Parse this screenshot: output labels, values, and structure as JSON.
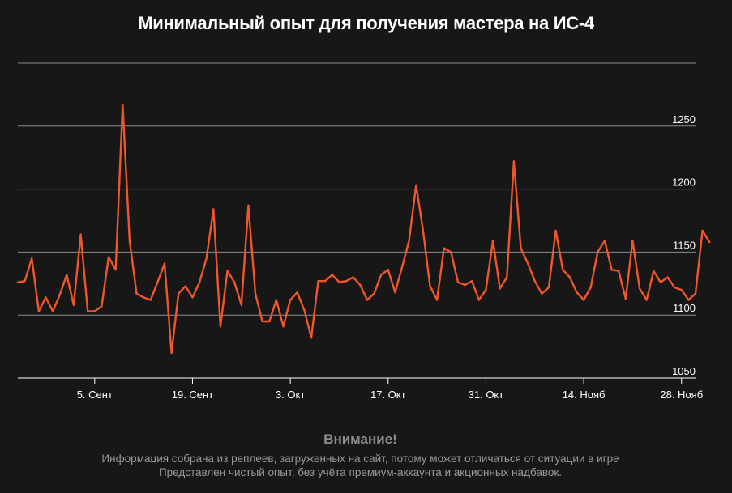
{
  "chart_data": {
    "type": "line",
    "title": "Минимальный опыт для получения мастера на ИС-4",
    "xlabel": "",
    "ylabel": "",
    "ylim": [
      1050,
      1300
    ],
    "yticks": [
      1050,
      1100,
      1150,
      1200,
      1250
    ],
    "xticks": [
      {
        "date": "2016-09-05",
        "label": "5. Сент"
      },
      {
        "date": "2016-09-19",
        "label": "19. Сент"
      },
      {
        "date": "2016-10-03",
        "label": "3. Окт"
      },
      {
        "date": "2016-10-17",
        "label": "17. Окт"
      },
      {
        "date": "2016-10-31",
        "label": "31. Окт"
      },
      {
        "date": "2016-11-14",
        "label": "14. Нояб"
      },
      {
        "date": "2016-11-28",
        "label": "28. Нояб"
      }
    ],
    "xlim": [
      "2016-08-25",
      "2016-11-30"
    ],
    "grid": true,
    "legend": "none",
    "series": [
      {
        "color": "#f0562a",
        "points": [
          [
            "2016-08-25",
            1126
          ],
          [
            "2016-08-26",
            1127
          ],
          [
            "2016-08-27",
            1145
          ],
          [
            "2016-08-28",
            1103
          ],
          [
            "2016-08-29",
            1114
          ],
          [
            "2016-08-30",
            1103
          ],
          [
            "2016-08-31",
            1116
          ],
          [
            "2016-09-01",
            1132
          ],
          [
            "2016-09-02",
            1108
          ],
          [
            "2016-09-03",
            1164
          ],
          [
            "2016-09-04",
            1103
          ],
          [
            "2016-09-05",
            1103
          ],
          [
            "2016-09-06",
            1107
          ],
          [
            "2016-09-07",
            1146
          ],
          [
            "2016-09-08",
            1136
          ],
          [
            "2016-09-09",
            1267
          ],
          [
            "2016-09-10",
            1159
          ],
          [
            "2016-09-11",
            1117
          ],
          [
            "2016-09-12",
            1114
          ],
          [
            "2016-09-13",
            1112
          ],
          [
            "2016-09-14",
            1126
          ],
          [
            "2016-09-15",
            1141
          ],
          [
            "2016-09-16",
            1070
          ],
          [
            "2016-09-17",
            1117
          ],
          [
            "2016-09-18",
            1123
          ],
          [
            "2016-09-19",
            1114
          ],
          [
            "2016-09-20",
            1126
          ],
          [
            "2016-09-21",
            1145
          ],
          [
            "2016-09-22",
            1184
          ],
          [
            "2016-09-23",
            1091
          ],
          [
            "2016-09-24",
            1135
          ],
          [
            "2016-09-25",
            1126
          ],
          [
            "2016-09-26",
            1108
          ],
          [
            "2016-09-27",
            1187
          ],
          [
            "2016-09-28",
            1117
          ],
          [
            "2016-09-29",
            1095
          ],
          [
            "2016-09-30",
            1095
          ],
          [
            "2016-10-01",
            1112
          ],
          [
            "2016-10-02",
            1091
          ],
          [
            "2016-10-03",
            1112
          ],
          [
            "2016-10-04",
            1118
          ],
          [
            "2016-10-05",
            1104
          ],
          [
            "2016-10-06",
            1082
          ],
          [
            "2016-10-07",
            1127
          ],
          [
            "2016-10-08",
            1127
          ],
          [
            "2016-10-09",
            1132
          ],
          [
            "2016-10-10",
            1126
          ],
          [
            "2016-10-11",
            1127
          ],
          [
            "2016-10-12",
            1130
          ],
          [
            "2016-10-13",
            1124
          ],
          [
            "2016-10-14",
            1112
          ],
          [
            "2016-10-15",
            1117
          ],
          [
            "2016-10-16",
            1132
          ],
          [
            "2016-10-17",
            1136
          ],
          [
            "2016-10-18",
            1118
          ],
          [
            "2016-10-19",
            1138
          ],
          [
            "2016-10-20",
            1159
          ],
          [
            "2016-10-21",
            1203
          ],
          [
            "2016-10-22",
            1167
          ],
          [
            "2016-10-23",
            1123
          ],
          [
            "2016-10-24",
            1112
          ],
          [
            "2016-10-25",
            1153
          ],
          [
            "2016-10-26",
            1150
          ],
          [
            "2016-10-27",
            1126
          ],
          [
            "2016-10-28",
            1124
          ],
          [
            "2016-10-29",
            1127
          ],
          [
            "2016-10-30",
            1112
          ],
          [
            "2016-10-31",
            1120
          ],
          [
            "2016-11-01",
            1159
          ],
          [
            "2016-11-02",
            1121
          ],
          [
            "2016-11-03",
            1130
          ],
          [
            "2016-11-04",
            1222
          ],
          [
            "2016-11-05",
            1153
          ],
          [
            "2016-11-06",
            1141
          ],
          [
            "2016-11-07",
            1127
          ],
          [
            "2016-11-08",
            1117
          ],
          [
            "2016-11-09",
            1122
          ],
          [
            "2016-11-10",
            1167
          ],
          [
            "2016-11-11",
            1136
          ],
          [
            "2016-11-12",
            1130
          ],
          [
            "2016-11-13",
            1118
          ],
          [
            "2016-11-14",
            1112
          ],
          [
            "2016-11-15",
            1122
          ],
          [
            "2016-11-16",
            1150
          ],
          [
            "2016-11-17",
            1159
          ],
          [
            "2016-11-18",
            1136
          ],
          [
            "2016-11-19",
            1135
          ],
          [
            "2016-11-20",
            1113
          ],
          [
            "2016-11-21",
            1159
          ],
          [
            "2016-11-22",
            1121
          ],
          [
            "2016-11-23",
            1112
          ],
          [
            "2016-11-24",
            1135
          ],
          [
            "2016-11-25",
            1126
          ],
          [
            "2016-11-26",
            1130
          ],
          [
            "2016-11-27",
            1122
          ],
          [
            "2016-11-28",
            1120
          ],
          [
            "2016-11-29",
            1112
          ],
          [
            "2016-11-30",
            1117
          ],
          [
            "2016-12-01",
            1167
          ],
          [
            "2016-12-02",
            1158
          ]
        ]
      }
    ]
  },
  "notice": {
    "title": "Внимание!",
    "line1": "Информация собрана из реплеев, загруженных на сайт, потому может отличаться от ситуации в игре",
    "line2": "Представлен чистый опыт, без учёта премиум-аккаунта и акционных надбавок."
  },
  "colors": {
    "background": "#171717",
    "line": "#f0562a",
    "grid": "#8a8a8a",
    "axis": "#ffffff",
    "notice": "#9a9a9a"
  }
}
